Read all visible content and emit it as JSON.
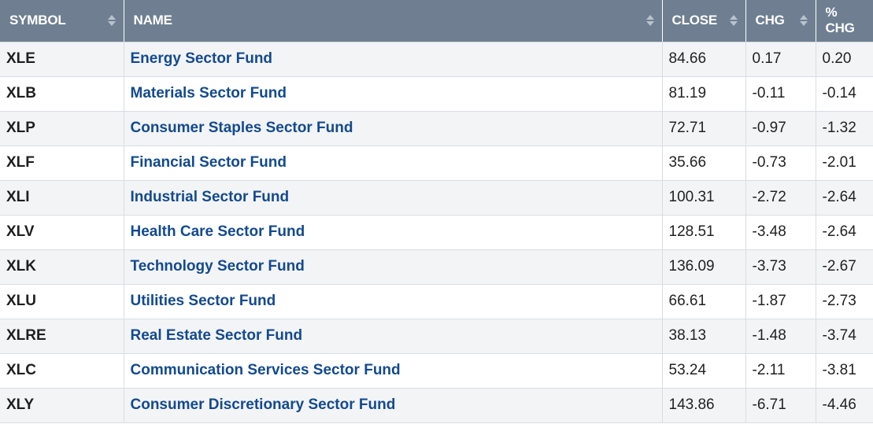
{
  "table": {
    "headers": {
      "symbol": "SYMBOL",
      "name": "NAME",
      "close": "CLOSE",
      "chg": "CHG",
      "pct_chg": "% CHG"
    },
    "rows": [
      {
        "symbol": "XLE",
        "name": "Energy Sector Fund",
        "close": "84.66",
        "chg": "0.17",
        "pct_chg": "0.20"
      },
      {
        "symbol": "XLB",
        "name": "Materials Sector Fund",
        "close": "81.19",
        "chg": "-0.11",
        "pct_chg": "-0.14"
      },
      {
        "symbol": "XLP",
        "name": "Consumer Staples Sector Fund",
        "close": "72.71",
        "chg": "-0.97",
        "pct_chg": "-1.32"
      },
      {
        "symbol": "XLF",
        "name": "Financial Sector Fund",
        "close": "35.66",
        "chg": "-0.73",
        "pct_chg": "-2.01"
      },
      {
        "symbol": "XLI",
        "name": "Industrial Sector Fund",
        "close": "100.31",
        "chg": "-2.72",
        "pct_chg": "-2.64"
      },
      {
        "symbol": "XLV",
        "name": "Health Care Sector Fund",
        "close": "128.51",
        "chg": "-3.48",
        "pct_chg": "-2.64"
      },
      {
        "symbol": "XLK",
        "name": "Technology Sector Fund",
        "close": "136.09",
        "chg": "-3.73",
        "pct_chg": "-2.67"
      },
      {
        "symbol": "XLU",
        "name": "Utilities Sector Fund",
        "close": "66.61",
        "chg": "-1.87",
        "pct_chg": "-2.73"
      },
      {
        "symbol": "XLRE",
        "name": "Real Estate Sector Fund",
        "close": "38.13",
        "chg": "-1.48",
        "pct_chg": "-3.74"
      },
      {
        "symbol": "XLC",
        "name": "Communication Services Sector Fund",
        "close": "53.24",
        "chg": "-2.11",
        "pct_chg": "-3.81"
      },
      {
        "symbol": "XLY",
        "name": "Consumer Discretionary Sector Fund",
        "close": "143.86",
        "chg": "-6.71",
        "pct_chg": "-4.46"
      }
    ]
  },
  "colors": {
    "header_bg": "#6f7f91",
    "link": "#134a8e",
    "row_alt": "#f3f4f6"
  }
}
